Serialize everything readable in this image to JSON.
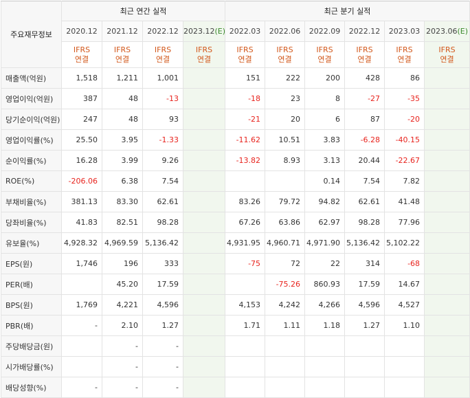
{
  "header": {
    "row_label": "주요재무정보",
    "annual_title": "최근 연간 실적",
    "quarter_title": "최근 분기 실적"
  },
  "periods": [
    {
      "label": "2020.12",
      "basis": [
        "IFRS",
        "연결"
      ]
    },
    {
      "label": "2021.12",
      "basis": [
        "IFRS",
        "연결"
      ]
    },
    {
      "label": "2022.12",
      "basis": [
        "IFRS",
        "연결"
      ]
    },
    {
      "label": "2023.12",
      "suffix": "(E)",
      "basis": [
        "IFRS",
        "연결"
      ]
    },
    {
      "label": "2022.03",
      "basis": [
        "IFRS",
        "연결"
      ]
    },
    {
      "label": "2022.06",
      "basis": [
        "IFRS",
        "연결"
      ]
    },
    {
      "label": "2022.09",
      "basis": [
        "IFRS",
        "연결"
      ]
    },
    {
      "label": "2022.12",
      "basis": [
        "IFRS",
        "연결"
      ]
    },
    {
      "label": "2023.03",
      "basis": [
        "IFRS",
        "연결"
      ]
    },
    {
      "label": "2023.06",
      "suffix": "(E)",
      "basis": [
        "IFRS",
        "연결"
      ]
    }
  ],
  "rows": [
    {
      "label": "매출액(억원)",
      "values": [
        "1,518",
        "1,211",
        "1,001",
        "",
        "151",
        "222",
        "200",
        "428",
        "86",
        ""
      ]
    },
    {
      "label": "영업이익(억원)",
      "values": [
        "387",
        "48",
        "-13",
        "",
        "-18",
        "23",
        "8",
        "-27",
        "-35",
        ""
      ]
    },
    {
      "label": "당기순이익(억원)",
      "values": [
        "247",
        "48",
        "93",
        "",
        "-21",
        "20",
        "6",
        "87",
        "-20",
        ""
      ]
    },
    {
      "label": "영업이익률(%)",
      "values": [
        "25.50",
        "3.95",
        "-1.33",
        "",
        "-11.62",
        "10.51",
        "3.83",
        "-6.28",
        "-40.15",
        ""
      ]
    },
    {
      "label": "순이익률(%)",
      "values": [
        "16.28",
        "3.99",
        "9.26",
        "",
        "-13.82",
        "8.93",
        "3.13",
        "20.44",
        "-22.67",
        ""
      ]
    },
    {
      "label": "ROE(%)",
      "values": [
        "-206.06",
        "6.38",
        "7.54",
        "",
        "",
        "",
        "0.14",
        "7.54",
        "7.82",
        ""
      ]
    },
    {
      "label": "부채비율(%)",
      "values": [
        "381.13",
        "83.30",
        "62.61",
        "",
        "83.26",
        "79.72",
        "94.82",
        "62.61",
        "41.48",
        ""
      ]
    },
    {
      "label": "당좌비율(%)",
      "values": [
        "41.83",
        "82.51",
        "98.28",
        "",
        "67.26",
        "63.86",
        "62.97",
        "98.28",
        "77.96",
        ""
      ]
    },
    {
      "label": "유보율(%)",
      "values": [
        "4,928.32",
        "4,969.59",
        "5,136.42",
        "",
        "4,931.95",
        "4,960.71",
        "4,971.90",
        "5,136.42",
        "5,102.22",
        ""
      ]
    },
    {
      "label": "EPS(원)",
      "values": [
        "1,746",
        "196",
        "333",
        "",
        "-75",
        "72",
        "22",
        "314",
        "-68",
        ""
      ]
    },
    {
      "label": "PER(배)",
      "values": [
        "",
        "45.20",
        "17.59",
        "",
        "",
        "-75.26",
        "860.93",
        "17.59",
        "14.67",
        ""
      ]
    },
    {
      "label": "BPS(원)",
      "values": [
        "1,769",
        "4,221",
        "4,596",
        "",
        "4,153",
        "4,242",
        "4,266",
        "4,596",
        "4,527",
        ""
      ]
    },
    {
      "label": "PBR(배)",
      "values": [
        "-",
        "2.10",
        "1.27",
        "",
        "1.71",
        "1.11",
        "1.18",
        "1.27",
        "1.10",
        ""
      ]
    },
    {
      "label": "주당배당금(원)",
      "values": [
        "",
        "-",
        "-",
        "",
        "",
        "",
        "",
        "",
        "",
        ""
      ]
    },
    {
      "label": "시가배당률(%)",
      "values": [
        "",
        "-",
        "-",
        "",
        "",
        "",
        "",
        "",
        "",
        ""
      ]
    },
    {
      "label": "배당성향(%)",
      "values": [
        "-",
        "-",
        "-",
        "",
        "",
        "",
        "",
        "",
        "",
        ""
      ]
    }
  ],
  "colors": {
    "negative": "#e8231d",
    "ifrs": "#d2571a",
    "estimate_bg": "#f1f7ee",
    "estimate_text": "#3b8a2d"
  }
}
